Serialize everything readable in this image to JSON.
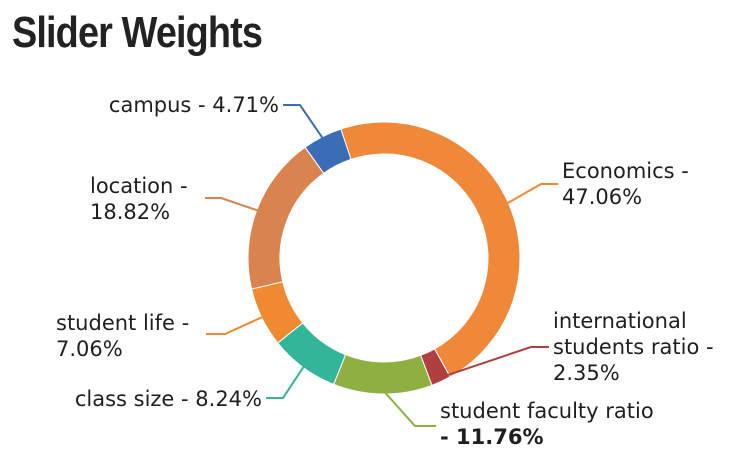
{
  "title": "Slider Weights",
  "chart_data": {
    "type": "pie",
    "variant": "donut",
    "title": "Slider Weights",
    "slices": [
      {
        "name": "Economics",
        "value": 47.06,
        "color": "#f0883a",
        "label_lines": [
          "Economics -",
          "47.06%"
        ]
      },
      {
        "name": "international students ratio",
        "value": 2.35,
        "color": "#b0403f",
        "label_lines": [
          "international",
          "students ratio -",
          "2.35%"
        ]
      },
      {
        "name": "student faculty ratio",
        "value": 11.76,
        "color": "#8db040",
        "label_lines": [
          "student faculty ratio",
          "- 11.76%"
        ]
      },
      {
        "name": "class size",
        "value": 8.24,
        "color": "#33b59a",
        "label_lines": [
          "class size - 8.24%"
        ]
      },
      {
        "name": "student life",
        "value": 7.06,
        "color": "#f08a30",
        "label_lines": [
          "student life -",
          "7.06%"
        ]
      },
      {
        "name": "location",
        "value": 18.82,
        "color": "#d9844f",
        "label_lines": [
          "location -",
          "18.82%"
        ]
      },
      {
        "name": "campus",
        "value": 4.71,
        "color": "#3a6db5",
        "label_lines": [
          "campus - 4.71%"
        ]
      }
    ]
  }
}
